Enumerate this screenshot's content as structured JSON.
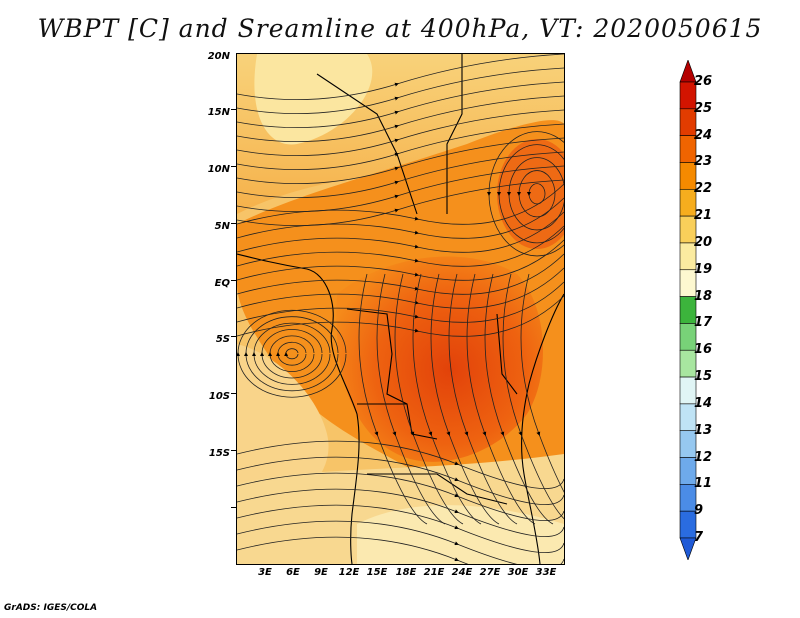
{
  "title": "WBPT [C] and Sreamline at 400hPa, VT: 2020050615",
  "credit": "GrADS: IGES/COLA",
  "y_axis_ticks": [
    "20N",
    "15N",
    "10N",
    "5N",
    "EQ",
    "5S",
    "10S",
    "15S"
  ],
  "x_axis_ticks": [
    "3E",
    "6E",
    "9E",
    "12E",
    "15E",
    "18E",
    "21E",
    "24E",
    "27E",
    "30E",
    "33E"
  ],
  "colorbar": {
    "labels": [
      "26",
      "25",
      "24",
      "23",
      "22",
      "21",
      "20",
      "19",
      "18",
      "17",
      "16",
      "15",
      "14",
      "13",
      "12",
      "11",
      "9",
      "7"
    ],
    "colors": [
      "#b40000",
      "#d21400",
      "#e23c00",
      "#f06400",
      "#f58a00",
      "#f6ad1e",
      "#f9cf5a",
      "#fbeba0",
      "#fdf8d0",
      "#3cb43c",
      "#78d278",
      "#a8e6a0",
      "#e0f5f5",
      "#bfe3f5",
      "#96c8f0",
      "#6eaaeb",
      "#4b8ce6",
      "#2a6ce0",
      "#1f5ad6"
    ]
  }
}
